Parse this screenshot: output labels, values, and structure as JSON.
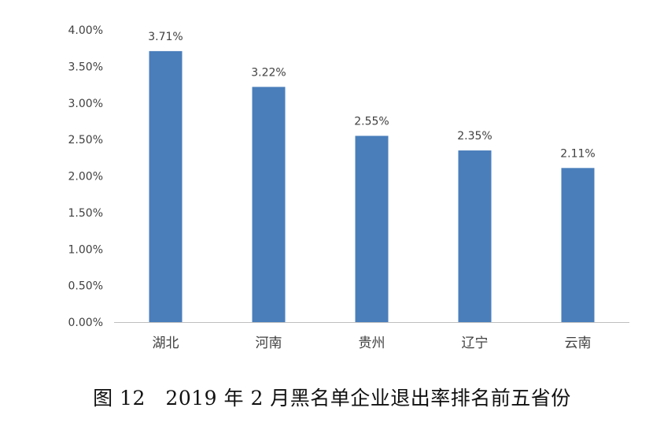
{
  "chart_data": {
    "type": "bar",
    "title": "",
    "xlabel": "",
    "ylabel": "",
    "categories": [
      "湖北",
      "河南",
      "贵州",
      "辽宁",
      "云南"
    ],
    "values": [
      3.71,
      3.22,
      2.55,
      2.35,
      2.11
    ],
    "data_labels": [
      "3.71%",
      "3.22%",
      "2.55%",
      "2.35%",
      "2.11%"
    ],
    "yticks": [
      "0.00%",
      "0.50%",
      "1.00%",
      "1.50%",
      "2.00%",
      "2.50%",
      "3.00%",
      "3.50%",
      "4.00%"
    ],
    "ylim": [
      0,
      4
    ],
    "grid": false,
    "legend": "none",
    "bar_color": "#4a7ebb",
    "axis_color": "#bfbfbf",
    "text_color": "#404040"
  },
  "caption": "图 12　2019 年 2 月黑名单企业退出率排名前五省份"
}
